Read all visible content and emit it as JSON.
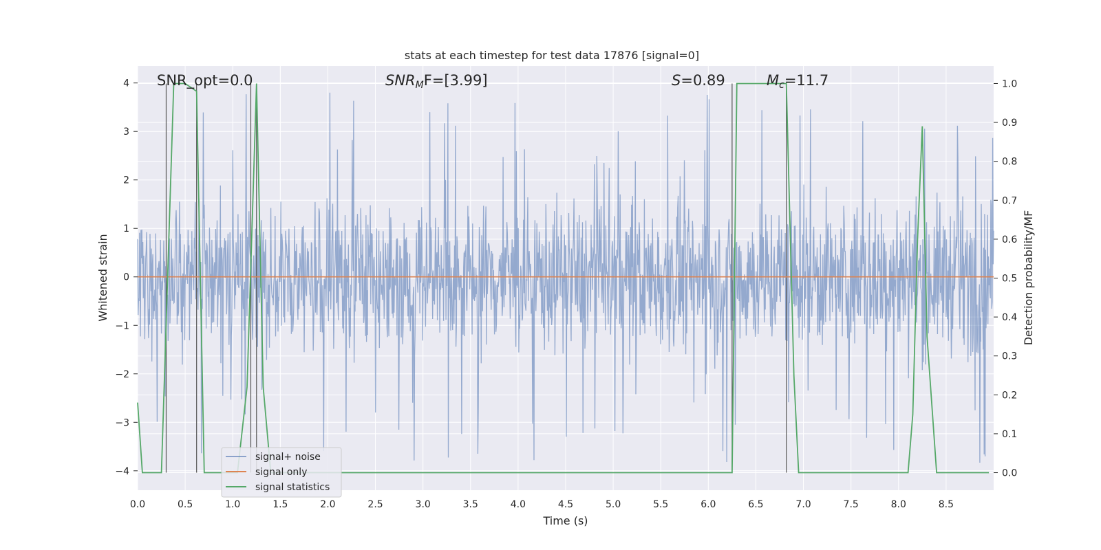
{
  "chart_data": {
    "type": "line",
    "title": "stats at each timestep for test data 17876 [signal=0]",
    "xlabel": "Time (s)",
    "ylabel": "Whitened strain",
    "y2label": "Detection probability/MF",
    "xlim": [
      0,
      9
    ],
    "ylim": [
      -4.4,
      4.35
    ],
    "y2lim": [
      -0.045,
      1.045
    ],
    "xticks": [
      "0.0",
      "0.5",
      "1.0",
      "1.5",
      "2.0",
      "2.5",
      "3.0",
      "3.5",
      "4.0",
      "4.5",
      "5.0",
      "5.5",
      "6.0",
      "6.5",
      "7.0",
      "7.5",
      "8.0",
      "8.5"
    ],
    "yticks": [
      "4",
      "3",
      "2",
      "1",
      "0",
      "−1",
      "−2",
      "−3",
      "−4"
    ],
    "y2ticks": [
      "1.0",
      "0.9",
      "0.8",
      "0.7",
      "0.6",
      "0.5",
      "0.4",
      "0.3",
      "0.2",
      "0.1",
      "0.0"
    ],
    "grid": true,
    "legend_position": "lower-left",
    "colors": {
      "background": "#eaeaf2",
      "grid": "#ffffff",
      "noise": "#4c72b0",
      "signal": "#dd8452",
      "statistics": "#55a868",
      "markers": "#555555"
    },
    "annotations": {
      "snr_opt": "SNR_opt=0.0",
      "snr_mf_prefix": "SNR",
      "snr_mf_sub": "M",
      "snr_mf_suffix": "F=[3.99]",
      "s_prefix": "S",
      "s_suffix": "=0.89",
      "mc_prefix": "M",
      "mc_sub": "c",
      "mc_suffix": "=11.7"
    },
    "series": [
      {
        "name": "signal+ noise",
        "style": "dense-noise",
        "x_range": [
          0,
          9
        ],
        "envelope": {
          "typical_max": 2.3,
          "typical_min": -2.3,
          "peak_max": 3.85,
          "peak_min": -4.0
        }
      },
      {
        "name": "signal only",
        "x": [
          0,
          9
        ],
        "y": [
          0,
          0
        ]
      },
      {
        "name": "signal statistics",
        "axis": "right",
        "x": [
          0.0,
          0.05,
          0.25,
          0.38,
          0.5,
          0.62,
          0.7,
          0.8,
          1.05,
          1.15,
          1.25,
          1.32,
          1.4,
          1.6,
          4.0,
          6.25,
          6.3,
          6.45,
          6.65,
          6.82,
          6.9,
          6.95,
          7.2,
          8.1,
          8.15,
          8.2,
          8.25,
          8.3,
          8.4,
          8.95
        ],
        "y": [
          0.18,
          0.0,
          0.0,
          1.0,
          1.0,
          0.98,
          0.0,
          0.0,
          0.0,
          0.22,
          1.0,
          0.22,
          0.0,
          0.0,
          0.0,
          0.0,
          1.0,
          1.0,
          1.0,
          1.0,
          0.25,
          0.0,
          0.0,
          0.0,
          0.15,
          0.6,
          0.89,
          0.35,
          0.0,
          0.0
        ]
      }
    ],
    "marker_lines": [
      0.3,
      0.62,
      1.19,
      1.25,
      6.25,
      6.82
    ]
  },
  "legend": {
    "items": [
      "signal+ noise",
      "signal only",
      "signal statistics"
    ]
  }
}
